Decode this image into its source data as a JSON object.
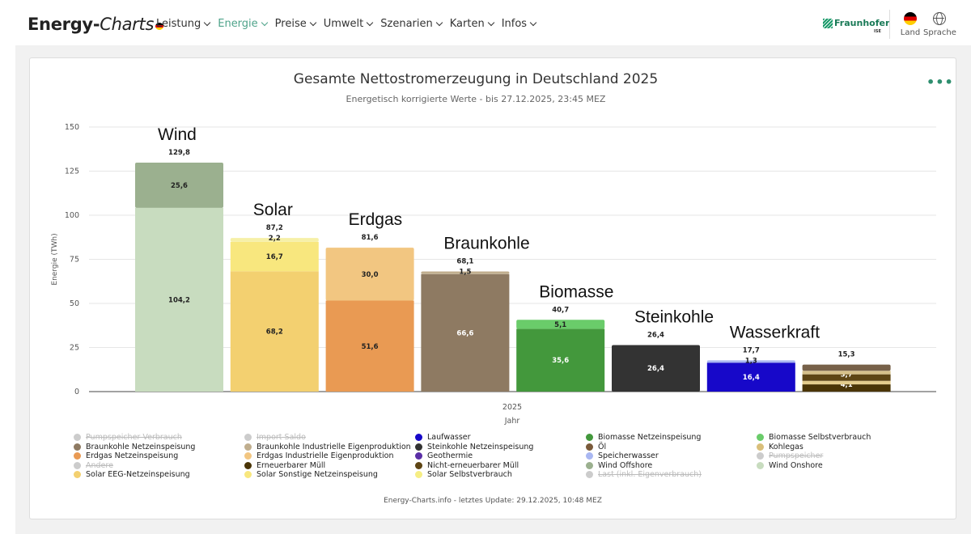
{
  "header": {
    "brand_main": "Energy-",
    "brand_italic": "Charts",
    "nav": [
      {
        "label": "Leistung",
        "active": false
      },
      {
        "label": "Energie",
        "active": true
      },
      {
        "label": "Preise",
        "active": false
      },
      {
        "label": "Umwelt",
        "active": false
      },
      {
        "label": "Szenarien",
        "active": false
      },
      {
        "label": "Karten",
        "active": false
      },
      {
        "label": "Infos",
        "active": false
      }
    ],
    "fraunhofer": "Fraunhofer",
    "fraunhofer_sub": "ISE",
    "land_label": "Land",
    "language_label": "Sprache"
  },
  "chart_data": {
    "type": "bar",
    "stacked": true,
    "title": "Gesamte Nettostromerzeugung in Deutschland 2025",
    "subtitle": "Energetisch korrigierte Werte - bis 27.12.2025, 23:45 MEZ",
    "ylabel": "Energie (TWh)",
    "xlabel": "Jahr",
    "x_tick": "2025",
    "ylim": [
      0,
      150
    ],
    "yticks": [
      0,
      25,
      50,
      75,
      100,
      125,
      150
    ],
    "grid": true,
    "bars": [
      {
        "name": "Wind",
        "total": "129,8",
        "segments": [
          {
            "value": 104.2,
            "label": "104,2",
            "color": "#c8dcbf"
          },
          {
            "value": 25.6,
            "label": "25,6",
            "color": "#9bb08f"
          }
        ]
      },
      {
        "name": "Solar",
        "total": "87,2",
        "segments": [
          {
            "value": 68.2,
            "label": "68,2",
            "color": "#f3d070"
          },
          {
            "value": 16.7,
            "label": "16,7",
            "color": "#f8e77e"
          },
          {
            "value": 2.2,
            "label": "2,2",
            "color": "#f6f0a8"
          }
        ]
      },
      {
        "name": "Erdgas",
        "total": "81,6",
        "segments": [
          {
            "value": 51.6,
            "label": "51,6",
            "color": "#e99a53"
          },
          {
            "value": 30.0,
            "label": "30,0",
            "color": "#f2c681"
          }
        ]
      },
      {
        "name": "Braunkohle",
        "total": "68,1",
        "segments": [
          {
            "value": 66.6,
            "label": "66,6",
            "color": "#8e7a62"
          },
          {
            "value": 1.5,
            "label": "1,5",
            "color": "#c0ae8e"
          }
        ]
      },
      {
        "name": "Biomasse",
        "total": "40,7",
        "segments": [
          {
            "value": 35.6,
            "label": "35,6",
            "color": "#43983c"
          },
          {
            "value": 5.1,
            "label": "5,1",
            "color": "#6acc6a"
          }
        ]
      },
      {
        "name": "Steinkohle",
        "total": "26,4",
        "segments": [
          {
            "value": 26.4,
            "label": "26,4",
            "color": "#333333"
          }
        ]
      },
      {
        "name": "Wasserkraft",
        "total": "17,7",
        "segments": [
          {
            "value": 16.4,
            "label": "16,4",
            "color": "#1708c9"
          },
          {
            "value": 1.3,
            "label": "1,3",
            "color": "#a9b7f2"
          }
        ]
      },
      {
        "name": "",
        "total": "15,3",
        "segments": [
          {
            "value": 4.1,
            "label": "4,1",
            "color": "#4a3506"
          },
          {
            "value": 2.0,
            "label": "",
            "color": "#e3cc8c"
          },
          {
            "value": 3.7,
            "label": "3,7",
            "color": "#5e4514"
          },
          {
            "value": 2.0,
            "label": "",
            "color": "#d6c08a"
          },
          {
            "value": 3.5,
            "label": "",
            "color": "#776149"
          }
        ]
      }
    ]
  },
  "legend": [
    [
      {
        "label": "Pumpspeicher Verbrauch",
        "color": "#cccccc",
        "off": true
      },
      {
        "label": "Braunkohle Netzeinspeisung",
        "color": "#8e7a62",
        "off": false
      },
      {
        "label": "Erdgas Netzeinspeisung",
        "color": "#e99a53",
        "off": false
      },
      {
        "label": "Andere",
        "color": "#cccccc",
        "off": true
      },
      {
        "label": "Solar EEG-Netzeinspeisung",
        "color": "#f3d070",
        "off": false
      }
    ],
    [
      {
        "label": "Import Saldo",
        "color": "#cccccc",
        "off": true
      },
      {
        "label": "Braunkohle Industrielle Eigenproduktion",
        "color": "#c0ae8e",
        "off": false
      },
      {
        "label": "Erdgas Industrielle Eigenproduktion",
        "color": "#f2c681",
        "off": false
      },
      {
        "label": "Erneuerbarer Müll",
        "color": "#4a3506",
        "off": false
      },
      {
        "label": "Solar Sonstige Netzeinspeisung",
        "color": "#f8e77e",
        "off": false
      }
    ],
    [
      {
        "label": "Laufwasser",
        "color": "#1708c9",
        "off": false
      },
      {
        "label": "Steinkohle Netzeinspeisung",
        "color": "#333333",
        "off": false
      },
      {
        "label": "Geothermie",
        "color": "#5a2ea6",
        "off": false
      },
      {
        "label": "Nicht-erneuerbarer Müll",
        "color": "#5e4514",
        "off": false
      },
      {
        "label": "Solar Selbstverbrauch",
        "color": "#f6ee84",
        "off": false
      }
    ],
    [
      {
        "label": "Biomasse Netzeinspeisung",
        "color": "#43983c",
        "off": false
      },
      {
        "label": "Öl",
        "color": "#7a5a3a",
        "off": false
      },
      {
        "label": "Speicherwasser",
        "color": "#a9b7f2",
        "off": false
      },
      {
        "label": "Wind Offshore",
        "color": "#9bb08f",
        "off": false
      },
      {
        "label": "Last (inkl. Eigenverbrauch)",
        "color": "#cccccc",
        "off": true
      }
    ],
    [
      {
        "label": "Biomasse Selbstverbrauch",
        "color": "#6acc6a",
        "off": false
      },
      {
        "label": "Kohlegas",
        "color": "#d9bf7a",
        "off": false
      },
      {
        "label": "Pumpspeicher",
        "color": "#cccccc",
        "off": true
      },
      {
        "label": "Wind Onshore",
        "color": "#c8dcbf",
        "off": false
      }
    ]
  ],
  "footer": "Energy-Charts.info - letztes Update: 29.12.2025, 10:48 MEZ"
}
